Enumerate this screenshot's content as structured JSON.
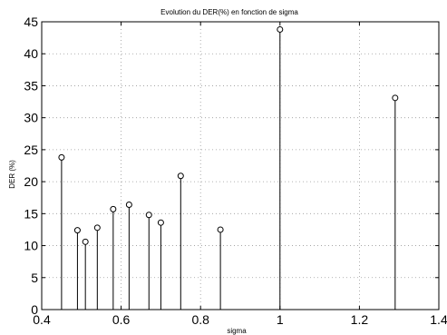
{
  "chart_data": {
    "type": "scatter",
    "style": "stem",
    "title": "Evolution du DER(%) en fonction de sigma",
    "xlabel": "sigma",
    "ylabel": "DER (%)",
    "xlim": [
      0.4,
      1.4
    ],
    "ylim": [
      0,
      45
    ],
    "xticks": [
      "0.4",
      "0.6",
      "0.8",
      "1",
      "1.2",
      "1.4"
    ],
    "yticks": [
      "0",
      "5",
      "10",
      "15",
      "20",
      "25",
      "30",
      "35",
      "40",
      "45"
    ],
    "grid": true,
    "marker": "circle",
    "color": "#000000",
    "x": [
      0.45,
      0.49,
      0.51,
      0.54,
      0.58,
      0.62,
      0.67,
      0.7,
      0.75,
      0.85,
      1.0,
      1.29
    ],
    "y": [
      23.8,
      12.4,
      10.6,
      12.8,
      15.7,
      16.4,
      14.8,
      13.6,
      20.9,
      12.5,
      43.8,
      33.1
    ]
  }
}
